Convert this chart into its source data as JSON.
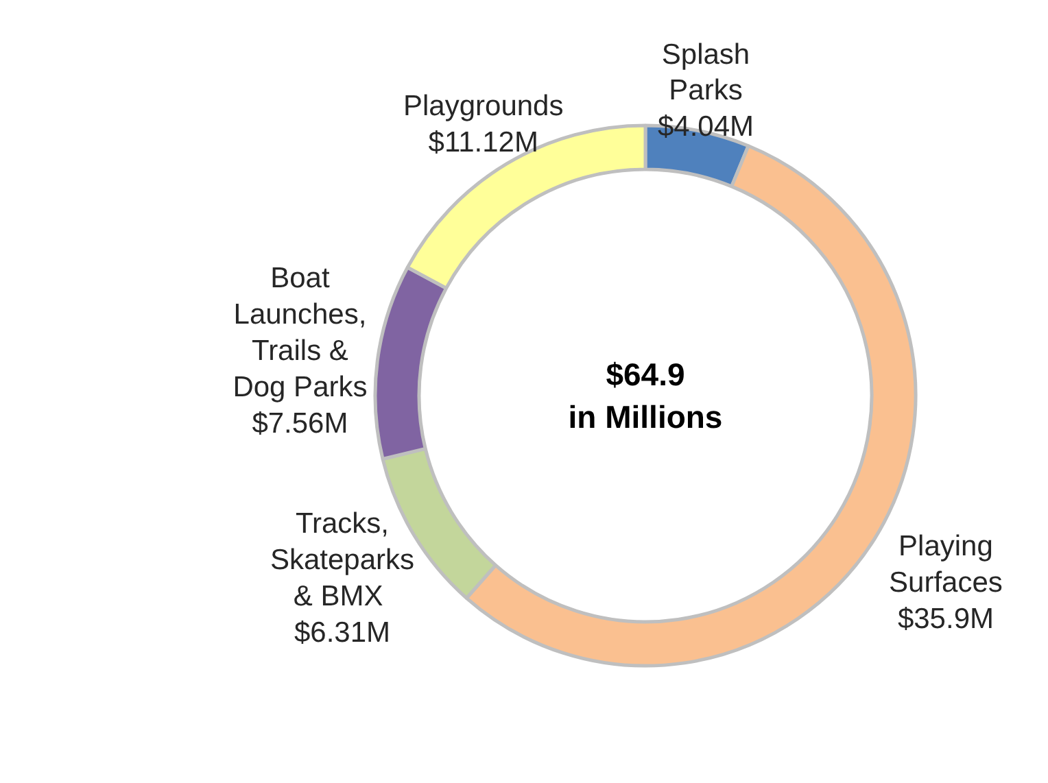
{
  "chart_data": {
    "type": "donut",
    "categories": [
      "Splash\nParks",
      "Playing\nSurfaces",
      "Tracks,\nSkateparks\n&  BMX",
      "Boat\nLaunches,\nTrails &\nDog Parks",
      "Playgrounds"
    ],
    "values": [
      4.04,
      35.9,
      6.31,
      7.56,
      11.12
    ],
    "value_labels": [
      "$4.04M",
      "$35.9M",
      "$6.31M",
      "$7.56M",
      "$11.12M"
    ],
    "colors": [
      "#4f81bd",
      "#fac090",
      "#c3d69b",
      "#8064a2",
      "#ffff99"
    ],
    "annotations": [
      "$64.9\nin Millions"
    ]
  }
}
